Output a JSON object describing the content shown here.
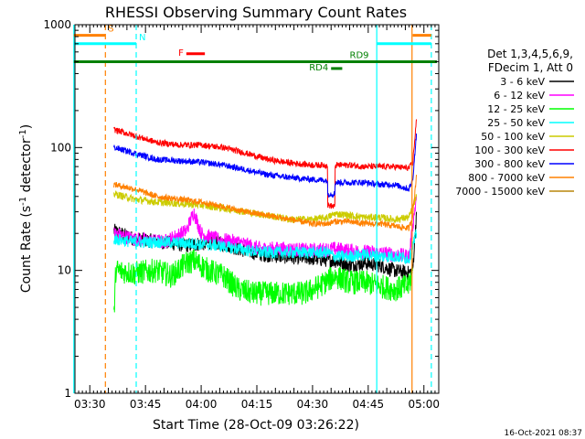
{
  "chart_data": {
    "type": "line",
    "title": "RHESSI Observing Summary Count Rates",
    "xlabel": "Start Time (28-Oct-09 03:26:22)",
    "ylabel": "Count Rate (s",
    "ylabel_sup1": "-1",
    "ylabel_mid": " detector",
    "ylabel_sup2": "-1",
    "ylabel_end": ")",
    "yscale": "log",
    "ylim": [
      1,
      1000
    ],
    "xlim_min": [
      206,
      304
    ],
    "yticks": [
      {
        "value": 1,
        "label": "1"
      },
      {
        "value": 10,
        "label": "10"
      },
      {
        "value": 100,
        "label": "100"
      },
      {
        "value": 1000,
        "label": "1000"
      }
    ],
    "xticks": [
      {
        "value": 210,
        "label": "03:30"
      },
      {
        "value": 225,
        "label": "03:45"
      },
      {
        "value": 240,
        "label": "04:00"
      },
      {
        "value": 255,
        "label": "04:15"
      },
      {
        "value": 270,
        "label": "04:30"
      },
      {
        "value": 285,
        "label": "04:45"
      },
      {
        "value": 300,
        "label": "05:00"
      }
    ],
    "legend": {
      "placement": "right",
      "header": [
        "Det 1,3,4,5,6,9,",
        "FDecim 1, Att 0"
      ]
    },
    "series": [
      {
        "name": "3 - 6 keV",
        "color": "#000000",
        "noise": 0.06,
        "points": [
          [
            216.5,
            21
          ],
          [
            222,
            18
          ],
          [
            230,
            17
          ],
          [
            236,
            16
          ],
          [
            244,
            17
          ],
          [
            250,
            15
          ],
          [
            256,
            13.5
          ],
          [
            262,
            13
          ],
          [
            270,
            12.5
          ],
          [
            276,
            12
          ],
          [
            280,
            11
          ],
          [
            284,
            11.5
          ],
          [
            288,
            11
          ],
          [
            292,
            10
          ],
          [
            296,
            9.5
          ],
          [
            297,
            10
          ],
          [
            298,
            30
          ]
        ]
      },
      {
        "name": "6 - 12 keV",
        "color": "#ff00ff",
        "noise": 0.06,
        "points": [
          [
            216.5,
            20
          ],
          [
            222,
            18
          ],
          [
            230,
            17
          ],
          [
            236,
            21
          ],
          [
            238,
            30
          ],
          [
            240,
            20
          ],
          [
            244,
            18
          ],
          [
            250,
            17
          ],
          [
            256,
            15
          ],
          [
            262,
            15
          ],
          [
            270,
            14.5
          ],
          [
            276,
            15
          ],
          [
            280,
            14.5
          ],
          [
            286,
            14
          ],
          [
            292,
            13.5
          ],
          [
            296,
            13
          ],
          [
            298,
            40
          ]
        ]
      },
      {
        "name": "12 - 25 keV",
        "color": "#00ff00",
        "noise": 0.1,
        "points": [
          [
            216.5,
            4
          ],
          [
            217,
            10
          ],
          [
            222,
            9.5
          ],
          [
            228,
            10
          ],
          [
            232,
            9
          ],
          [
            236,
            11.5
          ],
          [
            238,
            12
          ],
          [
            242,
            10
          ],
          [
            246,
            9
          ],
          [
            250,
            7
          ],
          [
            254,
            6.5
          ],
          [
            262,
            6.5
          ],
          [
            268,
            6.5
          ],
          [
            272,
            7.5
          ],
          [
            276,
            9
          ],
          [
            280,
            8
          ],
          [
            284,
            8
          ],
          [
            288,
            7.5
          ],
          [
            292,
            7
          ],
          [
            296,
            7.5
          ],
          [
            297,
            10
          ]
        ]
      },
      {
        "name": "25 - 50 keV",
        "color": "#00ffff",
        "noise": 0.05,
        "points": [
          [
            216.5,
            18
          ],
          [
            222,
            17
          ],
          [
            230,
            17
          ],
          [
            238,
            16.5
          ],
          [
            244,
            16
          ],
          [
            250,
            15
          ],
          [
            256,
            14
          ],
          [
            262,
            14
          ],
          [
            270,
            14
          ],
          [
            274,
            14
          ],
          [
            276,
            13
          ],
          [
            280,
            13
          ],
          [
            284,
            13.5
          ],
          [
            288,
            13
          ],
          [
            292,
            13
          ],
          [
            296,
            12.5
          ],
          [
            298,
            20
          ]
        ]
      },
      {
        "name": "50 - 100 keV",
        "color": "#cccc00",
        "noise": 0.03,
        "points": [
          [
            216.5,
            42
          ],
          [
            222,
            38
          ],
          [
            228,
            36
          ],
          [
            234,
            35
          ],
          [
            240,
            34
          ],
          [
            246,
            32
          ],
          [
            252,
            30
          ],
          [
            258,
            28
          ],
          [
            264,
            26
          ],
          [
            270,
            26
          ],
          [
            274,
            27
          ],
          [
            276,
            29
          ],
          [
            280,
            28
          ],
          [
            284,
            27
          ],
          [
            288,
            27
          ],
          [
            292,
            26
          ],
          [
            296,
            27
          ],
          [
            298,
            40
          ]
        ]
      },
      {
        "name": "100 - 300 keV",
        "color": "#ff0000",
        "noise": 0.025,
        "points": [
          [
            216.5,
            140
          ],
          [
            222,
            125
          ],
          [
            228,
            110
          ],
          [
            234,
            105
          ],
          [
            240,
            105
          ],
          [
            246,
            100
          ],
          [
            252,
            90
          ],
          [
            258,
            80
          ],
          [
            264,
            75
          ],
          [
            270,
            72
          ],
          [
            274,
            72
          ],
          [
            274.1,
            34
          ],
          [
            276,
            33
          ],
          [
            276.1,
            72
          ],
          [
            280,
            72
          ],
          [
            284,
            70
          ],
          [
            288,
            70
          ],
          [
            292,
            70
          ],
          [
            296,
            68
          ],
          [
            297,
            75
          ],
          [
            298,
            170
          ]
        ]
      },
      {
        "name": "300 - 800 keV",
        "color": "#0000ff",
        "noise": 0.025,
        "points": [
          [
            216.5,
            100
          ],
          [
            222,
            90
          ],
          [
            228,
            80
          ],
          [
            234,
            78
          ],
          [
            240,
            76
          ],
          [
            246,
            72
          ],
          [
            252,
            66
          ],
          [
            258,
            60
          ],
          [
            264,
            57
          ],
          [
            270,
            55
          ],
          [
            274,
            54
          ],
          [
            274.1,
            42
          ],
          [
            276,
            42
          ],
          [
            276.1,
            52
          ],
          [
            280,
            52
          ],
          [
            284,
            52
          ],
          [
            288,
            50
          ],
          [
            292,
            50
          ],
          [
            296,
            46
          ],
          [
            297,
            55
          ],
          [
            298,
            130
          ]
        ]
      },
      {
        "name": "800 - 7000 keV",
        "color": "#ff8000",
        "noise": 0.025,
        "points": [
          [
            216.5,
            50
          ],
          [
            222,
            46
          ],
          [
            228,
            40
          ],
          [
            234,
            38
          ],
          [
            240,
            36
          ],
          [
            246,
            33
          ],
          [
            252,
            30
          ],
          [
            258,
            28
          ],
          [
            264,
            26
          ],
          [
            270,
            24
          ],
          [
            274,
            24
          ],
          [
            276,
            25
          ],
          [
            280,
            25
          ],
          [
            284,
            24
          ],
          [
            288,
            24
          ],
          [
            292,
            23
          ],
          [
            296,
            22
          ],
          [
            297,
            28
          ],
          [
            298,
            60
          ]
        ]
      },
      {
        "name": "7000 - 15000 keV",
        "color": "#b8860b",
        "noise": 0.0,
        "points": []
      }
    ],
    "annotations": {
      "vlines": [
        {
          "x": 205.7,
          "color": "#00ffff",
          "dash": false
        },
        {
          "x": 214.2,
          "color": "#ff8000",
          "dash": true
        },
        {
          "x": 222.5,
          "color": "#00ffff",
          "dash": true
        },
        {
          "x": 287.3,
          "color": "#00ffff",
          "dash": false
        },
        {
          "x": 296.8,
          "color": "#ff8000",
          "dash": false
        },
        {
          "x": 302.0,
          "color": "#00ffff",
          "dash": true
        }
      ],
      "segments": [
        {
          "label": "S",
          "color": "#ff8000",
          "x0": 205.7,
          "x1": 214.2,
          "y": 820,
          "label_at": "end"
        },
        {
          "label": "N",
          "color": "#00ffff",
          "x0": 205.7,
          "x1": 222.5,
          "y": 700,
          "label_at": "end"
        },
        {
          "label": "",
          "color": "#ff8000",
          "x0": 297.0,
          "x1": 302.0,
          "y": 820,
          "label_at": "end"
        },
        {
          "label": "",
          "color": "#00ffff",
          "x0": 287.3,
          "x1": 302.0,
          "y": 700,
          "label_at": "end"
        },
        {
          "label": "F",
          "color": "#ff0000",
          "x0": 236.0,
          "x1": 241.0,
          "y": 580,
          "label_at": "start"
        },
        {
          "label": "RD9",
          "color": "#008000",
          "x0": 205.7,
          "x1": 303.5,
          "y": 500,
          "label_at": "mid",
          "label_x": 280
        },
        {
          "label": "RD4",
          "color": "#008000",
          "x0": 275.0,
          "x1": 278.0,
          "y": 440,
          "label_at": "start"
        }
      ]
    }
  },
  "footer": {
    "timestamp": "16-Oct-2021 08:37"
  }
}
